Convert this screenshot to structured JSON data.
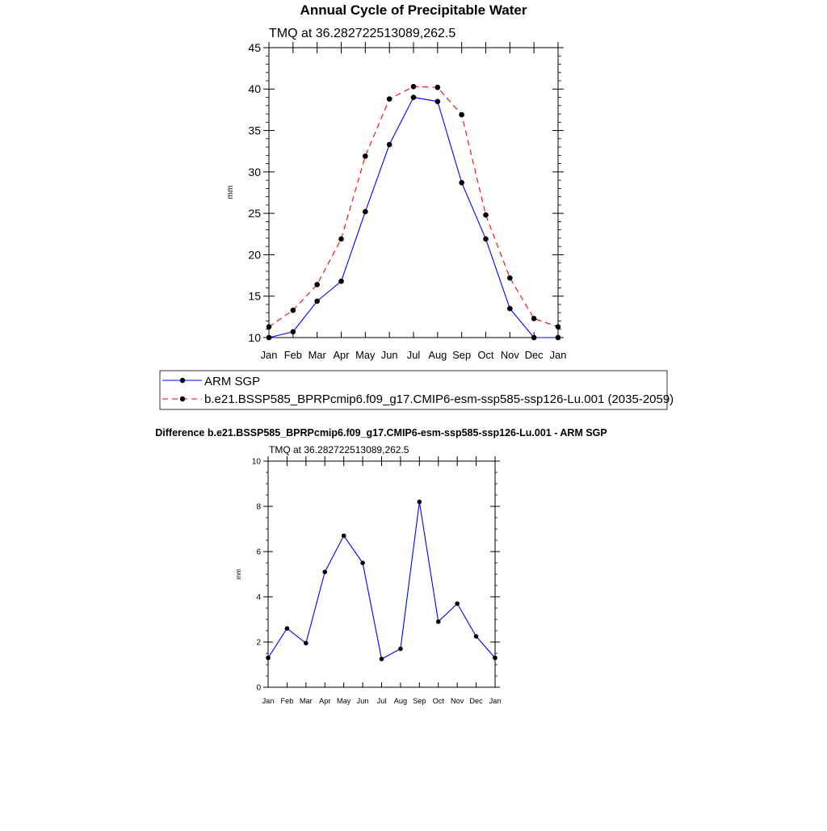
{
  "chart_data": [
    {
      "type": "line",
      "title": "Annual Cycle of Precipitable Water",
      "subtitle": "TMQ at 36.282722513089,262.5",
      "xlabel": "",
      "ylabel": "mm",
      "ylim": [
        10,
        45
      ],
      "yticks": [
        10,
        15,
        20,
        25,
        30,
        35,
        40,
        45
      ],
      "categories": [
        "Jan",
        "Feb",
        "Mar",
        "Apr",
        "May",
        "Jun",
        "Jul",
        "Aug",
        "Sep",
        "Oct",
        "Nov",
        "Dec",
        "Jan"
      ],
      "series": [
        {
          "name": "ARM SGP",
          "color": "#0000ff",
          "dash": "solid",
          "values": [
            10.0,
            10.7,
            14.4,
            16.8,
            25.2,
            33.3,
            39.0,
            38.5,
            28.7,
            21.9,
            13.5,
            10.0,
            10.0
          ]
        },
        {
          "name": "b.e21.BSSP585_BPRPcmip6.f09_g17.CMIP6-esm-ssp585-ssp126-Lu.001 (2035-2059)",
          "color": "#ff0000",
          "dash": "dashed",
          "values": [
            11.3,
            13.3,
            16.4,
            21.9,
            31.9,
            38.8,
            40.3,
            40.2,
            36.9,
            24.8,
            17.2,
            12.3,
            11.3
          ]
        }
      ],
      "legend": "bottom"
    },
    {
      "type": "line",
      "title": "Difference b.e21.BSSP585_BPRPcmip6.f09_g17.CMIP6-esm-ssp585-ssp126-Lu.001 - ARM SGP",
      "subtitle": "TMQ at 36.282722513089,262.5",
      "xlabel": "",
      "ylabel": "mm",
      "ylim": [
        0,
        10
      ],
      "yticks": [
        0,
        2,
        4,
        6,
        8,
        10
      ],
      "categories": [
        "Jan",
        "Feb",
        "Mar",
        "Apr",
        "May",
        "Jun",
        "Jul",
        "Aug",
        "Sep",
        "Oct",
        "Nov",
        "Dec",
        "Jan"
      ],
      "series": [
        {
          "name": "Difference",
          "color": "#0000ff",
          "dash": "solid",
          "values": [
            1.3,
            2.6,
            1.95,
            5.1,
            6.7,
            5.5,
            1.25,
            1.7,
            8.2,
            2.9,
            3.7,
            2.25,
            1.3
          ]
        }
      ]
    }
  ]
}
